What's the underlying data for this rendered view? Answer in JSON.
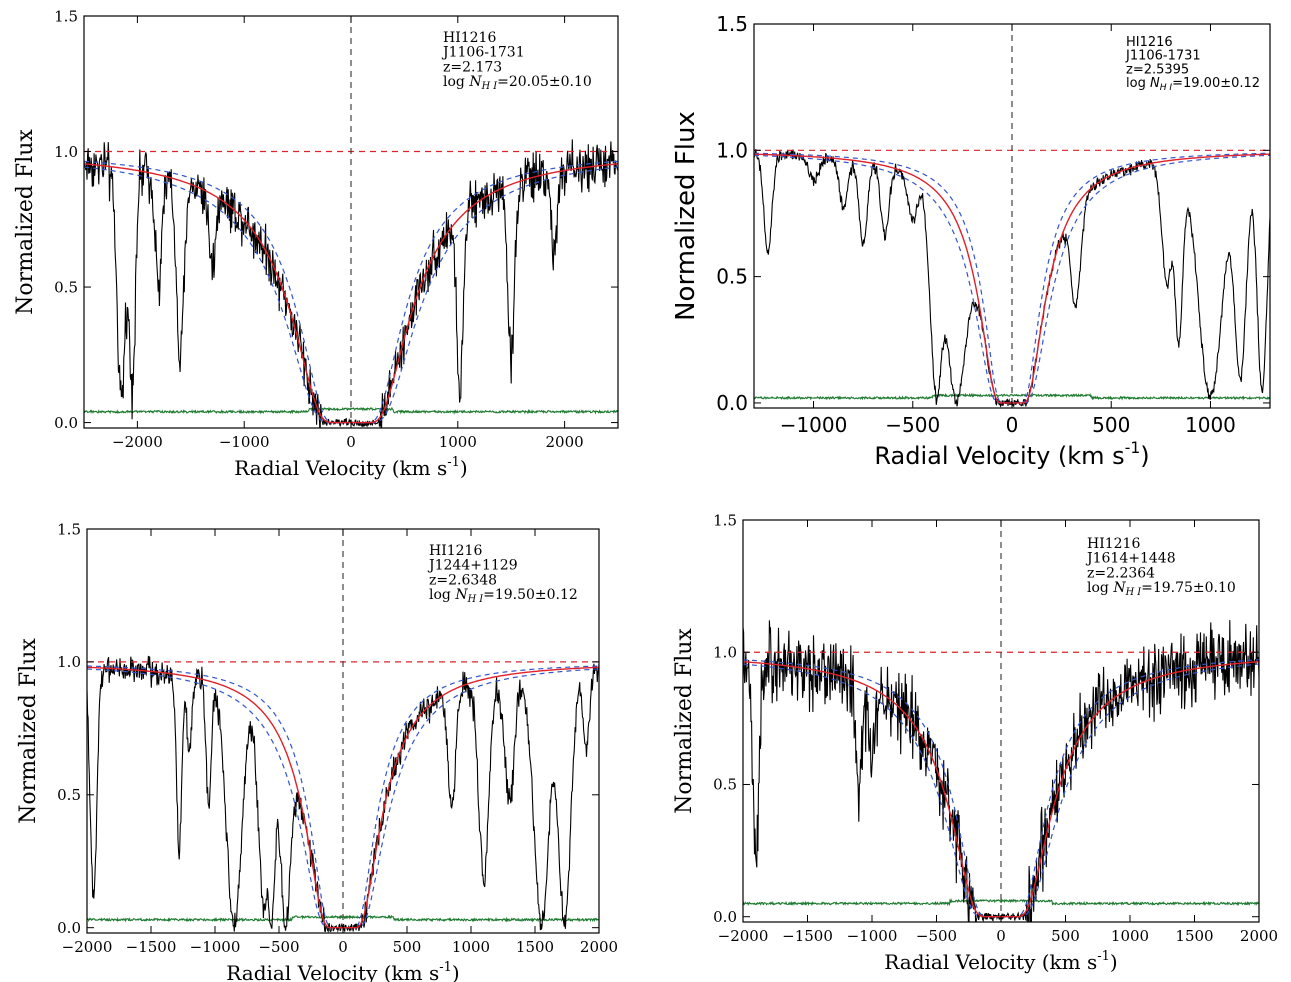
{
  "chart_data": [
    {
      "type": "line",
      "xlabel": "Radial Velocity (km s",
      "xlabel_sup": "-1",
      "xlabel_end": ")",
      "ylabel": "Normalized Flux",
      "xlim": [
        -2500,
        2500
      ],
      "ylim": [
        -0.02,
        1.5
      ],
      "xticks": [
        -2000,
        -1000,
        0,
        1000,
        2000
      ],
      "xtick_labels": [
        "−2000",
        "−1000",
        "0",
        "1000",
        "2000"
      ],
      "yticks": [
        0.0,
        0.5,
        1.0,
        1.5
      ],
      "ytick_labels": [
        "0.0",
        "0.5",
        "1.0",
        "1.5"
      ],
      "annotation": [
        "HI1216",
        "J1106-1731",
        "z=2.173"
      ],
      "annotation_log": {
        "prefix": "log ",
        "symbol": "N",
        "sub": "H I",
        "value": "=20.05±0.10"
      },
      "fit": {
        "logN": 20.05,
        "err": 0.1
      },
      "continuum": 1.0,
      "error_level": 0.04,
      "absorbers": [
        {
          "v": -2150,
          "depth": 0.92,
          "width": 40
        },
        {
          "v": -2050,
          "depth": 0.85,
          "width": 30
        },
        {
          "v": -1600,
          "depth": 0.75,
          "width": 35
        },
        {
          "v": -1800,
          "depth": 0.45,
          "width": 30
        },
        {
          "v": -1300,
          "depth": 0.3,
          "width": 30
        },
        {
          "v": 1020,
          "depth": 0.85,
          "width": 30
        },
        {
          "v": 1500,
          "depth": 0.75,
          "width": 30
        },
        {
          "v": 1900,
          "depth": 0.3,
          "width": 30
        }
      ],
      "noise": 0.045
    },
    {
      "type": "line",
      "xlabel": "Radial Velocity (km s",
      "xlabel_sup": "-1",
      "xlabel_end": ")",
      "ylabel": "Normalized Flux",
      "xlim": [
        -1300,
        1300
      ],
      "ylim": [
        -0.02,
        1.5
      ],
      "xticks": [
        -1000,
        -500,
        0,
        500,
        1000
      ],
      "xtick_labels": [
        "−1000",
        "−500",
        "0",
        "500",
        "1000"
      ],
      "yticks": [
        0.0,
        0.5,
        1.0,
        1.5
      ],
      "ytick_labels": [
        "0.0",
        "0.5",
        "1.0",
        "1.5"
      ],
      "annotation": [
        "HI1216",
        "J1106-1731",
        "z=2.5395"
      ],
      "annotation_log": {
        "prefix": "log ",
        "symbol": "N",
        "sub": "H I",
        "value": "=19.00±0.12"
      },
      "fit": {
        "logN": 19.0,
        "err": 0.12
      },
      "continuum": 1.0,
      "error_level": 0.02,
      "absorbers": [
        {
          "v": -1230,
          "depth": 0.4,
          "width": 20
        },
        {
          "v": -1000,
          "depth": 0.1,
          "width": 25
        },
        {
          "v": -850,
          "depth": 0.2,
          "width": 20
        },
        {
          "v": -750,
          "depth": 0.35,
          "width": 20
        },
        {
          "v": -640,
          "depth": 0.3,
          "width": 20
        },
        {
          "v": -500,
          "depth": 0.2,
          "width": 25
        },
        {
          "v": -380,
          "depth": 0.98,
          "width": 30
        },
        {
          "v": -280,
          "depth": 0.98,
          "width": 50
        },
        {
          "v": 320,
          "depth": 0.5,
          "width": 25
        },
        {
          "v": 780,
          "depth": 0.5,
          "width": 25
        },
        {
          "v": 840,
          "depth": 0.75,
          "width": 20
        },
        {
          "v": 1000,
          "depth": 0.98,
          "width": 60
        },
        {
          "v": 1150,
          "depth": 0.9,
          "width": 30
        },
        {
          "v": 1260,
          "depth": 0.95,
          "width": 25
        }
      ],
      "noise": 0.012
    },
    {
      "type": "line",
      "xlabel": "Radial Velocity (km s",
      "xlabel_sup": "-1",
      "xlabel_end": ")",
      "ylabel": "Normalized Flux",
      "xlim": [
        -2000,
        2000
      ],
      "ylim": [
        -0.02,
        1.5
      ],
      "xticks": [
        -2000,
        -1500,
        -1000,
        -500,
        0,
        500,
        1000,
        1500,
        2000
      ],
      "xtick_labels": [
        "−2000",
        "−1500",
        "−1000",
        "−500",
        "0",
        "500",
        "1000",
        "1500",
        "2000"
      ],
      "yticks": [
        0.0,
        0.5,
        1.0,
        1.5
      ],
      "ytick_labels": [
        "0.0",
        "0.5",
        "1.0",
        "1.5"
      ],
      "annotation": [
        "HI1216",
        "J1244+1129",
        "z=2.6348"
      ],
      "annotation_log": {
        "prefix": "log ",
        "symbol": "N",
        "sub": "H I",
        "value": "=19.50±0.12"
      },
      "fit": {
        "logN": 19.5,
        "err": 0.12
      },
      "continuum": 1.0,
      "error_level": 0.03,
      "absorbers": [
        {
          "v": -1950,
          "depth": 0.9,
          "width": 25
        },
        {
          "v": -1280,
          "depth": 0.7,
          "width": 20
        },
        {
          "v": -1200,
          "depth": 0.3,
          "width": 20
        },
        {
          "v": -1050,
          "depth": 0.5,
          "width": 20
        },
        {
          "v": -850,
          "depth": 0.98,
          "width": 60
        },
        {
          "v": -620,
          "depth": 0.9,
          "width": 40
        },
        {
          "v": -560,
          "depth": 0.98,
          "width": 30
        },
        {
          "v": -450,
          "depth": 0.98,
          "width": 40
        },
        {
          "v": 850,
          "depth": 0.5,
          "width": 30
        },
        {
          "v": 1100,
          "depth": 0.8,
          "width": 40
        },
        {
          "v": 1300,
          "depth": 0.5,
          "width": 40
        },
        {
          "v": 1550,
          "depth": 0.98,
          "width": 60
        },
        {
          "v": 1730,
          "depth": 0.98,
          "width": 50
        },
        {
          "v": 1900,
          "depth": 0.3,
          "width": 25
        }
      ],
      "noise": 0.025
    },
    {
      "type": "line",
      "xlabel": "Radial Velocity (km s",
      "xlabel_sup": "-1",
      "xlabel_end": ")",
      "ylabel": "Normalized Flux",
      "xlim": [
        -2000,
        2000
      ],
      "ylim": [
        -0.02,
        1.5
      ],
      "xticks": [
        -2000,
        -1500,
        -1000,
        -500,
        0,
        500,
        1000,
        1500,
        2000
      ],
      "xtick_labels": [
        "−2000",
        "−1500",
        "−1000",
        "−500",
        "0",
        "500",
        "1000",
        "1500",
        "2000"
      ],
      "yticks": [
        0.0,
        0.5,
        1.0,
        1.5
      ],
      "ytick_labels": [
        "0.0",
        "0.5",
        "1.0",
        "1.5"
      ],
      "annotation": [
        "HI1216",
        "J1614+1448",
        "z=2.2364"
      ],
      "annotation_log": {
        "prefix": "log ",
        "symbol": "N",
        "sub": "H I",
        "value": "=19.75±0.10"
      },
      "fit": {
        "logN": 19.75,
        "err": 0.1
      },
      "continuum": 1.0,
      "error_level": 0.05,
      "absorbers": [
        {
          "v": -1900,
          "depth": 0.8,
          "width": 25
        },
        {
          "v": -1100,
          "depth": 0.45,
          "width": 25
        },
        {
          "v": -1000,
          "depth": 0.35,
          "width": 25
        }
      ],
      "noise": 0.07
    }
  ]
}
